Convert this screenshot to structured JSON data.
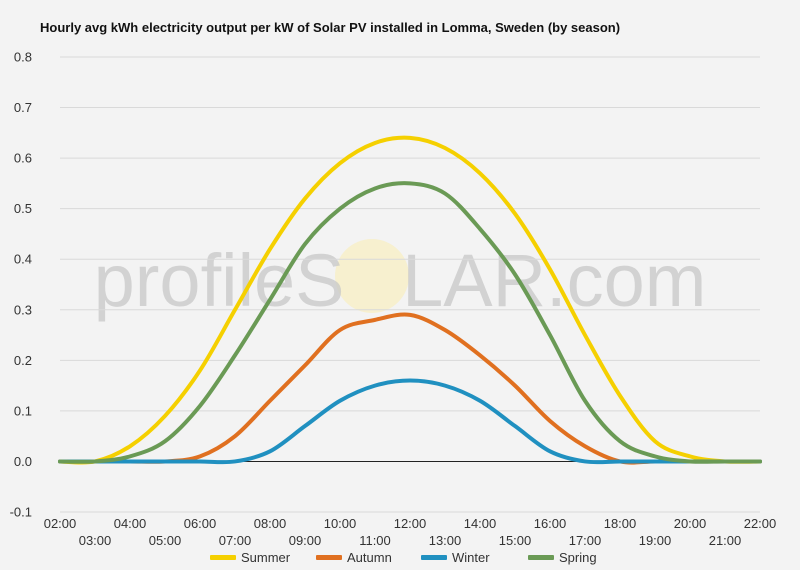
{
  "watermark": {
    "prefix": "profileS",
    "sun_letter": "O",
    "suffix": "LAR.com"
  },
  "chart_data": {
    "type": "line",
    "title": "Hourly avg kWh electricity output per kW of Solar PV installed in Lomma, Sweden (by season)",
    "xlabel": "",
    "ylabel": "",
    "ylim": [
      -0.1,
      0.8
    ],
    "yticks": [
      "-0.1",
      "0.0",
      "0.1",
      "0.2",
      "0.3",
      "0.4",
      "0.5",
      "0.6",
      "0.7",
      "0.8"
    ],
    "x": [
      "02:00",
      "03:00",
      "04:00",
      "05:00",
      "06:00",
      "07:00",
      "08:00",
      "09:00",
      "10:00",
      "11:00",
      "12:00",
      "13:00",
      "14:00",
      "15:00",
      "16:00",
      "17:00",
      "18:00",
      "19:00",
      "20:00",
      "21:00",
      "22:00"
    ],
    "grid": true,
    "legend_position": "bottom",
    "series": [
      {
        "name": "Summer",
        "color": "#f5d000",
        "values": [
          0.0,
          0.0,
          0.03,
          0.09,
          0.18,
          0.3,
          0.42,
          0.52,
          0.59,
          0.63,
          0.64,
          0.62,
          0.57,
          0.49,
          0.38,
          0.25,
          0.13,
          0.04,
          0.01,
          0.0,
          0.0
        ]
      },
      {
        "name": "Autumn",
        "color": "#e07020",
        "values": [
          0.0,
          0.0,
          0.0,
          0.0,
          0.01,
          0.05,
          0.12,
          0.19,
          0.26,
          0.28,
          0.29,
          0.26,
          0.21,
          0.15,
          0.08,
          0.03,
          0.0,
          0.0,
          0.0,
          0.0,
          0.0
        ]
      },
      {
        "name": "Winter",
        "color": "#2090c0",
        "values": [
          0.0,
          0.0,
          0.0,
          0.0,
          0.0,
          0.0,
          0.02,
          0.07,
          0.12,
          0.15,
          0.16,
          0.15,
          0.12,
          0.07,
          0.02,
          0.0,
          0.0,
          0.0,
          0.0,
          0.0,
          0.0
        ]
      },
      {
        "name": "Spring",
        "color": "#6a9a55",
        "values": [
          0.0,
          0.0,
          0.01,
          0.04,
          0.11,
          0.21,
          0.32,
          0.43,
          0.5,
          0.54,
          0.55,
          0.53,
          0.46,
          0.37,
          0.25,
          0.12,
          0.04,
          0.01,
          0.0,
          0.0,
          0.0
        ]
      }
    ]
  }
}
